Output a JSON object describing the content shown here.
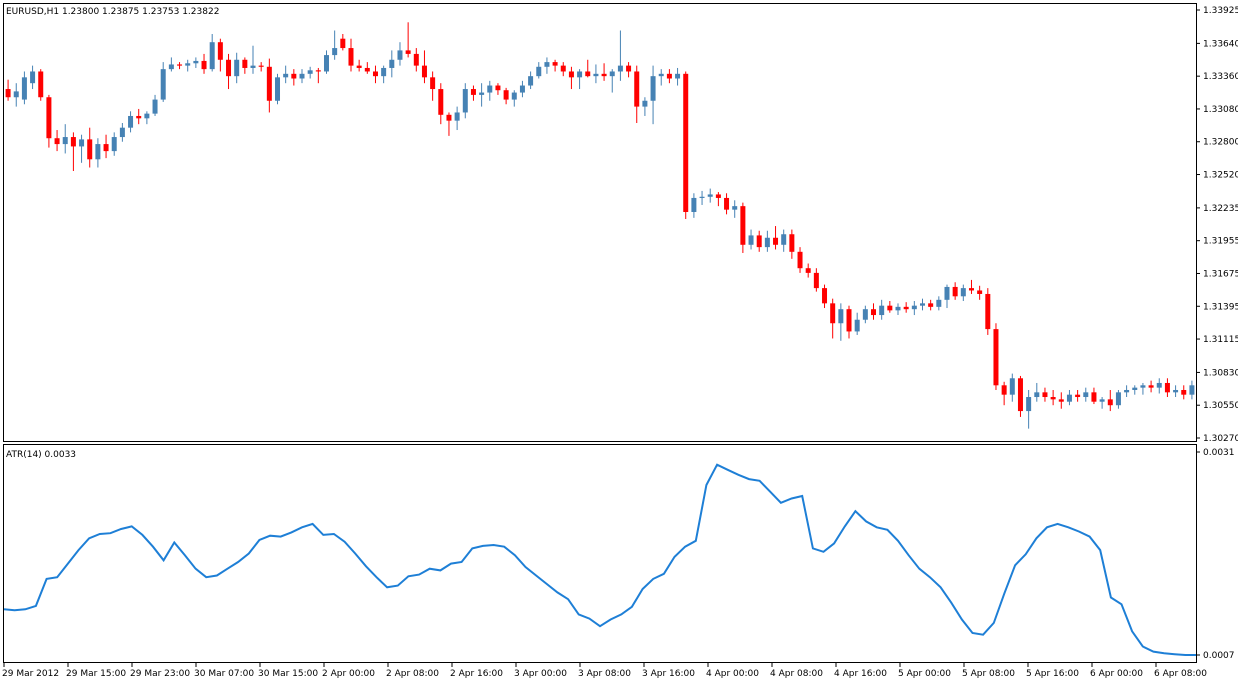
{
  "chart_data": [
    {
      "type": "candlestick",
      "symbol_header": "EURUSD,H1  1.23800 1.23875 1.23753 1.23822",
      "ylim": [
        1.3027,
        1.33925
      ],
      "y_ticks": [
        "1.33925",
        "1.33640",
        "1.33360",
        "1.33080",
        "1.32800",
        "1.32520",
        "1.32235",
        "1.31955",
        "1.31675",
        "1.31395",
        "1.31115",
        "1.30830",
        "1.30550",
        "1.30270"
      ],
      "colors": {
        "bull": "#4682b4",
        "bear": "#ff0000",
        "wick_bull": "#4682b4",
        "wick_bear": "#ff0000"
      },
      "candles": [
        [
          1.3325,
          1.3333,
          1.3315,
          1.3318
        ],
        [
          1.3318,
          1.333,
          1.331,
          1.3323
        ],
        [
          1.3316,
          1.334,
          1.3312,
          1.3335
        ],
        [
          1.333,
          1.3345,
          1.3325,
          1.334
        ],
        [
          1.334,
          1.3342,
          1.3315,
          1.3318
        ],
        [
          1.3318,
          1.332,
          1.3275,
          1.3283
        ],
        [
          1.3283,
          1.329,
          1.3272,
          1.3278
        ],
        [
          1.3278,
          1.3295,
          1.327,
          1.3284
        ],
        [
          1.3284,
          1.3288,
          1.3255,
          1.3276
        ],
        [
          1.3276,
          1.3286,
          1.3262,
          1.3282
        ],
        [
          1.3282,
          1.3292,
          1.3258,
          1.3265
        ],
        [
          1.3265,
          1.3283,
          1.3258,
          1.3278
        ],
        [
          1.3278,
          1.3286,
          1.3266,
          1.3272
        ],
        [
          1.3272,
          1.3288,
          1.3268,
          1.3284
        ],
        [
          1.3284,
          1.3296,
          1.328,
          1.3292
        ],
        [
          1.3292,
          1.3306,
          1.3288,
          1.3302
        ],
        [
          1.3302,
          1.3308,
          1.3295,
          1.33
        ],
        [
          1.33,
          1.3306,
          1.3295,
          1.3304
        ],
        [
          1.3304,
          1.332,
          1.3302,
          1.3316
        ],
        [
          1.3316,
          1.3348,
          1.3314,
          1.3342
        ],
        [
          1.3342,
          1.3352,
          1.334,
          1.3346
        ],
        [
          1.3346,
          1.3348,
          1.3342,
          1.3345
        ],
        [
          1.3345,
          1.335,
          1.334,
          1.3347
        ],
        [
          1.3347,
          1.3352,
          1.3343,
          1.3349
        ],
        [
          1.3349,
          1.3355,
          1.3338,
          1.3342
        ],
        [
          1.3342,
          1.3372,
          1.334,
          1.3365
        ],
        [
          1.3365,
          1.3368,
          1.334,
          1.335
        ],
        [
          1.335,
          1.3355,
          1.3325,
          1.3336
        ],
        [
          1.3336,
          1.3356,
          1.333,
          1.335
        ],
        [
          1.335,
          1.3352,
          1.3338,
          1.3343
        ],
        [
          1.3343,
          1.3362,
          1.3338,
          1.3345
        ],
        [
          1.3345,
          1.3348,
          1.334,
          1.3344
        ],
        [
          1.3344,
          1.3351,
          1.3305,
          1.3315
        ],
        [
          1.3315,
          1.3338,
          1.3312,
          1.3335
        ],
        [
          1.3335,
          1.3345,
          1.333,
          1.3338
        ],
        [
          1.3338,
          1.3342,
          1.3328,
          1.3334
        ],
        [
          1.3334,
          1.3342,
          1.333,
          1.3338
        ],
        [
          1.3338,
          1.3344,
          1.3334,
          1.3341
        ],
        [
          1.3341,
          1.3343,
          1.333,
          1.334
        ],
        [
          1.334,
          1.3358,
          1.3338,
          1.3354
        ],
        [
          1.3354,
          1.3375,
          1.335,
          1.336
        ],
        [
          1.3368,
          1.3372,
          1.3358,
          1.336
        ],
        [
          1.336,
          1.3368,
          1.334,
          1.3345
        ],
        [
          1.3345,
          1.335,
          1.334,
          1.3343
        ],
        [
          1.3343,
          1.3348,
          1.3338,
          1.334
        ],
        [
          1.334,
          1.3345,
          1.333,
          1.3336
        ],
        [
          1.3336,
          1.3345,
          1.333,
          1.3343
        ],
        [
          1.3343,
          1.3358,
          1.3335,
          1.335
        ],
        [
          1.335,
          1.3365,
          1.3345,
          1.3358
        ],
        [
          1.3358,
          1.3382,
          1.3352,
          1.3355
        ],
        [
          1.3355,
          1.336,
          1.334,
          1.3345
        ],
        [
          1.3345,
          1.3358,
          1.333,
          1.3335
        ],
        [
          1.3335,
          1.334,
          1.3315,
          1.3325
        ],
        [
          1.3325,
          1.333,
          1.3295,
          1.3303
        ],
        [
          1.3303,
          1.3305,
          1.3285,
          1.3298
        ],
        [
          1.3298,
          1.331,
          1.329,
          1.3305
        ],
        [
          1.3305,
          1.333,
          1.33,
          1.3325
        ],
        [
          1.3325,
          1.3328,
          1.3315,
          1.332
        ],
        [
          1.332,
          1.333,
          1.331,
          1.3322
        ],
        [
          1.3322,
          1.3332,
          1.3315,
          1.3328
        ],
        [
          1.3328,
          1.333,
          1.332,
          1.3324
        ],
        [
          1.3324,
          1.3326,
          1.3312,
          1.3316
        ],
        [
          1.3316,
          1.3324,
          1.331,
          1.3322
        ],
        [
          1.3322,
          1.3332,
          1.3318,
          1.3328
        ],
        [
          1.3328,
          1.334,
          1.3325,
          1.3336
        ],
        [
          1.3336,
          1.3348,
          1.3334,
          1.3344
        ],
        [
          1.3344,
          1.3352,
          1.3338,
          1.3348
        ],
        [
          1.3348,
          1.335,
          1.334,
          1.3345
        ],
        [
          1.3345,
          1.3348,
          1.3336,
          1.334
        ],
        [
          1.334,
          1.3344,
          1.3325,
          1.3335
        ],
        [
          1.3335,
          1.3342,
          1.3325,
          1.334
        ],
        [
          1.334,
          1.335,
          1.3335,
          1.3336
        ],
        [
          1.3336,
          1.3346,
          1.333,
          1.3338
        ],
        [
          1.3338,
          1.3347,
          1.3332,
          1.3336
        ],
        [
          1.3336,
          1.3342,
          1.3322,
          1.334
        ],
        [
          1.334,
          1.3375,
          1.3332,
          1.3345
        ],
        [
          1.3345,
          1.3348,
          1.3335,
          1.334
        ],
        [
          1.334,
          1.3345,
          1.3296,
          1.331
        ],
        [
          1.331,
          1.3318,
          1.3302,
          1.3315
        ],
        [
          1.3315,
          1.3345,
          1.3295,
          1.3336
        ],
        [
          1.3336,
          1.3342,
          1.3328,
          1.3338
        ],
        [
          1.3338,
          1.3342,
          1.333,
          1.3334
        ],
        [
          1.3334,
          1.3343,
          1.3328,
          1.3338
        ],
        [
          1.3338,
          1.334,
          1.3214,
          1.322
        ],
        [
          1.322,
          1.3236,
          1.3215,
          1.3232
        ],
        [
          1.3232,
          1.3238,
          1.3226,
          1.3233
        ],
        [
          1.3233,
          1.324,
          1.3228,
          1.3235
        ],
        [
          1.3235,
          1.3237,
          1.3225,
          1.3232
        ],
        [
          1.3232,
          1.3236,
          1.3218,
          1.3222
        ],
        [
          1.3222,
          1.323,
          1.3215,
          1.3225
        ],
        [
          1.3225,
          1.3228,
          1.3185,
          1.3192
        ],
        [
          1.3192,
          1.3205,
          1.3188,
          1.32
        ],
        [
          1.32,
          1.3204,
          1.3186,
          1.319
        ],
        [
          1.319,
          1.3204,
          1.3186,
          1.3198
        ],
        [
          1.3198,
          1.3208,
          1.3188,
          1.3192
        ],
        [
          1.3192,
          1.3205,
          1.3186,
          1.3201
        ],
        [
          1.3201,
          1.3205,
          1.318,
          1.3186
        ],
        [
          1.3186,
          1.319,
          1.3168,
          1.3172
        ],
        [
          1.3172,
          1.3176,
          1.3164,
          1.3168
        ],
        [
          1.3168,
          1.3172,
          1.3152,
          1.3155
        ],
        [
          1.3155,
          1.3158,
          1.3138,
          1.3142
        ],
        [
          1.3142,
          1.3146,
          1.3112,
          1.3125
        ],
        [
          1.3125,
          1.3142,
          1.311,
          1.3137
        ],
        [
          1.3137,
          1.314,
          1.3112,
          1.3118
        ],
        [
          1.3118,
          1.3134,
          1.3115,
          1.3128
        ],
        [
          1.3128,
          1.314,
          1.3125,
          1.3137
        ],
        [
          1.3137,
          1.3142,
          1.3128,
          1.3132
        ],
        [
          1.3132,
          1.3145,
          1.3128,
          1.314
        ],
        [
          1.314,
          1.3144,
          1.3134,
          1.3136
        ],
        [
          1.3136,
          1.3142,
          1.3132,
          1.3139
        ],
        [
          1.3139,
          1.3143,
          1.3134,
          1.3137
        ],
        [
          1.3137,
          1.3144,
          1.3132,
          1.314
        ],
        [
          1.314,
          1.3146,
          1.3136,
          1.3142
        ],
        [
          1.3142,
          1.3145,
          1.3136,
          1.3139
        ],
        [
          1.3139,
          1.3148,
          1.3136,
          1.3145
        ],
        [
          1.3145,
          1.3158,
          1.3138,
          1.3156
        ],
        [
          1.3156,
          1.316,
          1.3145,
          1.3148
        ],
        [
          1.3148,
          1.3158,
          1.3144,
          1.3155
        ],
        [
          1.3155,
          1.3162,
          1.315,
          1.3153
        ],
        [
          1.3153,
          1.3157,
          1.3145,
          1.315
        ],
        [
          1.315,
          1.3155,
          1.3115,
          1.312
        ],
        [
          1.312,
          1.3125,
          1.3068,
          1.3072
        ],
        [
          1.3072,
          1.3075,
          1.3055,
          1.3064
        ],
        [
          1.3064,
          1.3082,
          1.3058,
          1.3078
        ],
        [
          1.3078,
          1.308,
          1.3045,
          1.305
        ],
        [
          1.305,
          1.3068,
          1.3035,
          1.3062
        ],
        [
          1.3062,
          1.3074,
          1.3058,
          1.3066
        ],
        [
          1.3066,
          1.307,
          1.3058,
          1.3062
        ],
        [
          1.3062,
          1.3068,
          1.3055,
          1.306
        ],
        [
          1.306,
          1.3066,
          1.3052,
          1.3058
        ],
        [
          1.3058,
          1.3068,
          1.3055,
          1.3064
        ],
        [
          1.3064,
          1.3068,
          1.3058,
          1.3062
        ],
        [
          1.3062,
          1.307,
          1.3058,
          1.3066
        ],
        [
          1.3066,
          1.307,
          1.3056,
          1.3058
        ],
        [
          1.3058,
          1.3062,
          1.3052,
          1.306
        ],
        [
          1.306,
          1.3068,
          1.305,
          1.3055
        ],
        [
          1.3055,
          1.3068,
          1.3052,
          1.3066
        ],
        [
          1.3066,
          1.3072,
          1.3062,
          1.3068
        ],
        [
          1.3068,
          1.3072,
          1.3064,
          1.307
        ],
        [
          1.307,
          1.3074,
          1.3064,
          1.3072
        ],
        [
          1.3072,
          1.3076,
          1.3066,
          1.307
        ],
        [
          1.307,
          1.3078,
          1.3065,
          1.3074
        ],
        [
          1.3074,
          1.3078,
          1.3062,
          1.3066
        ],
        [
          1.3066,
          1.3072,
          1.3062,
          1.3068
        ],
        [
          1.3068,
          1.3072,
          1.306,
          1.3064
        ],
        [
          1.3064,
          1.3076,
          1.306,
          1.3072
        ]
      ]
    },
    {
      "type": "line",
      "title": "ATR(14) 0.0033",
      "ylim": [
        0.0007,
        0.0031
      ],
      "y_ticks": [
        "0.0031",
        "0.0007"
      ],
      "color": "#1e7fd6",
      "values": [
        0.00124,
        0.00123,
        0.00124,
        0.00128,
        0.0016,
        0.00162,
        0.00178,
        0.00194,
        0.00208,
        0.00213,
        0.00214,
        0.00219,
        0.00222,
        0.00212,
        0.00198,
        0.00182,
        0.00203,
        0.00188,
        0.00172,
        0.00162,
        0.00164,
        0.00172,
        0.0018,
        0.0019,
        0.00206,
        0.00211,
        0.0021,
        0.00215,
        0.00221,
        0.00225,
        0.00212,
        0.00213,
        0.00204,
        0.0019,
        0.00175,
        0.00162,
        0.0015,
        0.00152,
        0.00163,
        0.00165,
        0.00172,
        0.0017,
        0.00178,
        0.0018,
        0.00196,
        0.00199,
        0.002,
        0.00198,
        0.00188,
        0.00174,
        0.00164,
        0.00154,
        0.00144,
        0.00136,
        0.00118,
        0.00113,
        0.00104,
        0.00112,
        0.00118,
        0.00127,
        0.00148,
        0.0016,
        0.00166,
        0.00186,
        0.00198,
        0.00205,
        0.00271,
        0.00295,
        0.00289,
        0.00283,
        0.00278,
        0.00276,
        0.00263,
        0.0025,
        0.00255,
        0.00258,
        0.00196,
        0.00192,
        0.00202,
        0.00222,
        0.0024,
        0.00228,
        0.00221,
        0.00218,
        0.00205,
        0.00188,
        0.00172,
        0.00162,
        0.0015,
        0.00132,
        0.00112,
        0.00096,
        0.00094,
        0.00108,
        0.00143,
        0.00176,
        0.00189,
        0.00208,
        0.00221,
        0.00225,
        0.00221,
        0.00216,
        0.0021,
        0.00194,
        0.00138,
        0.0013,
        0.00098,
        0.0008,
        0.00074,
        0.00072,
        0.00071,
        0.0007,
        0.0007
      ]
    }
  ],
  "x_axis_labels": [
    "29 Mar 2012",
    "29 Mar 15:00",
    "29 Mar 23:00",
    "30 Mar 07:00",
    "30 Mar 15:00",
    "2 Apr 00:00",
    "2 Apr 08:00",
    "2 Apr 16:00",
    "3 Apr 00:00",
    "3 Apr 08:00",
    "3 Apr 16:00",
    "4 Apr 00:00",
    "4 Apr 08:00",
    "4 Apr 16:00",
    "5 Apr 00:00",
    "5 Apr 08:00",
    "5 Apr 16:00",
    "6 Apr 00:00",
    "6 Apr 08:00"
  ]
}
